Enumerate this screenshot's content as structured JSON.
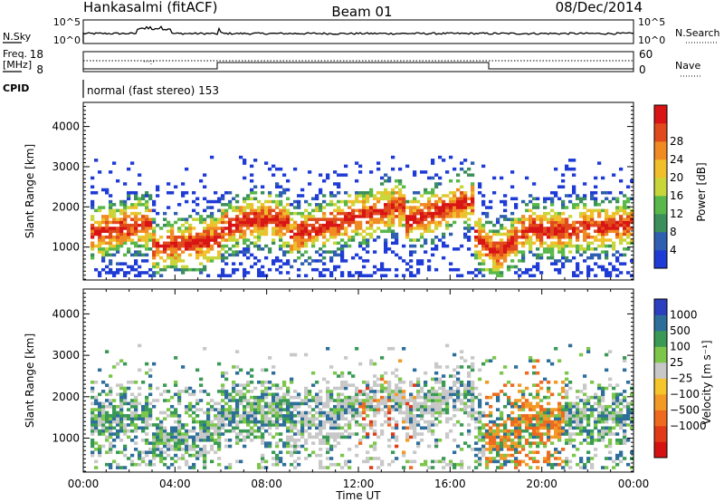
{
  "header": {
    "station": "Hankasalmi (fitACF)",
    "beam": "Beam 01",
    "date": "08/Dec/2014"
  },
  "panels": {
    "sky": {
      "left_label": "N.Sky",
      "left_ticks": [
        "10^5",
        "10^0"
      ],
      "right_label": "N.Search",
      "right_ticks": [
        "10^5",
        "10^0"
      ]
    },
    "freq": {
      "left_label_line1": "Freq.",
      "left_label_line2": "[MHz]",
      "left_ticks": [
        "18",
        "8"
      ],
      "right_label": "Nave",
      "right_ticks": [
        "60",
        "0"
      ],
      "cpid_label": "CPID",
      "cpid_text": "normal (fast stereo) 153"
    }
  },
  "chart_data": [
    {
      "type": "heatmap",
      "quantity": "Power",
      "ylabel": "Slant Range [km]",
      "yticks": [
        "1000",
        "2000",
        "3000",
        "4000"
      ],
      "ylim": [
        180,
        4600
      ],
      "colorbar_label": "Power [dB]",
      "colorbar_ticks": [
        "4",
        "8",
        "12",
        "16",
        "20",
        "24",
        "28"
      ],
      "colorbar_colors": [
        "#1f3bd6",
        "#2e5fb0",
        "#3c8f5a",
        "#59b84a",
        "#c9d63a",
        "#f0c02c",
        "#f08a23",
        "#e04a1c",
        "#d91414"
      ]
    },
    {
      "type": "heatmap",
      "quantity": "Velocity",
      "ylabel": "Slant Range [km]",
      "yticks": [
        "1000",
        "2000",
        "3000",
        "4000"
      ],
      "ylim": [
        180,
        4600
      ],
      "colorbar_label": "Velocity [m s⁻¹]",
      "colorbar_ticks": [
        "1000",
        "500",
        "100",
        "25",
        "−25",
        "−100",
        "−500",
        "−1000"
      ],
      "colorbar_colors": [
        "#2c3fbf",
        "#2e6e9a",
        "#3a9a55",
        "#7cc64a",
        "#c8c8c8",
        "#f4c52c",
        "#f29a26",
        "#ee6a1f",
        "#e03a18",
        "#d41212"
      ]
    }
  ],
  "xaxis": {
    "xlabel": "Time UT",
    "ticks": [
      "00:00",
      "04:00",
      "08:00",
      "12:00",
      "16:00",
      "20:00",
      "00:00"
    ]
  }
}
